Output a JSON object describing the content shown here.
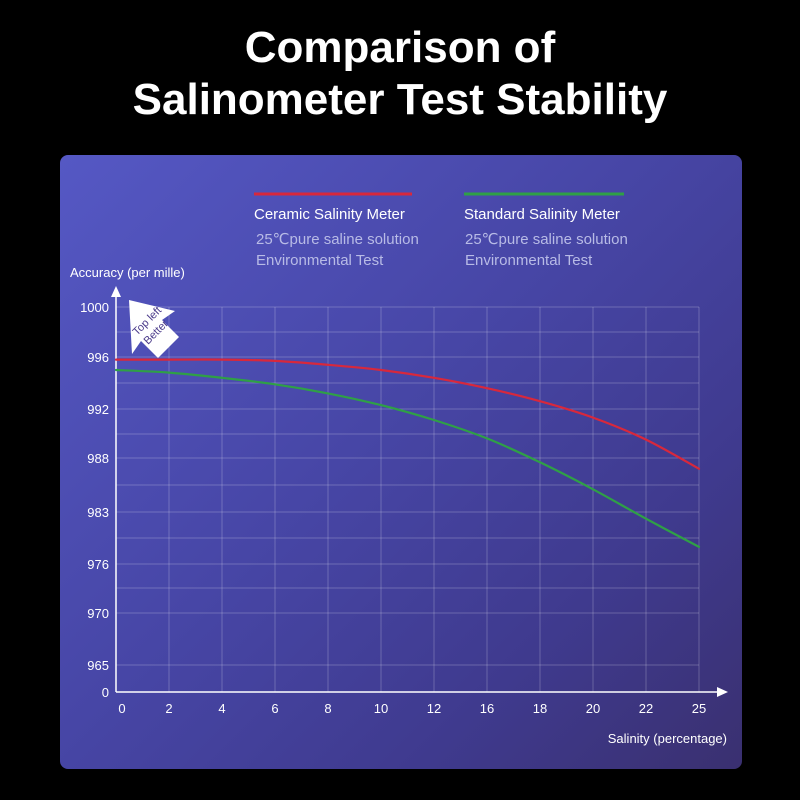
{
  "title": {
    "line1": "Comparison of",
    "line2": "Salinometer Test Stability"
  },
  "chart_data": {
    "type": "line",
    "xlabel": "Salinity (percentage)",
    "ylabel": "Accuracy (per mille)",
    "x_ticks": [
      "0",
      "2",
      "4",
      "6",
      "8",
      "10",
      "12",
      "16",
      "18",
      "20",
      "22",
      "25"
    ],
    "y_ticks": [
      "0",
      "965",
      "970",
      "976",
      "983",
      "988",
      "992",
      "996",
      "1000"
    ],
    "grid": true,
    "legend_position": "top",
    "annotation": {
      "line1": "Top left",
      "line2": "Better"
    },
    "series": [
      {
        "name": "Ceramic Salinity Meter",
        "subtitle1": "25℃pure saline solution",
        "subtitle2": "Environmental Test",
        "color": "#d8283c",
        "values": [
          [
            0,
            995.8
          ],
          [
            2,
            995.8
          ],
          [
            4,
            995.8
          ],
          [
            6,
            995.7
          ],
          [
            8,
            995.4
          ],
          [
            10,
            995.0
          ],
          [
            12,
            994.4
          ],
          [
            16,
            993.6
          ],
          [
            18,
            992.6
          ],
          [
            20,
            991.3
          ],
          [
            22,
            989.5
          ],
          [
            25,
            987.0
          ]
        ]
      },
      {
        "name": "Standard Salinity Meter",
        "subtitle1": "25℃pure saline solution",
        "subtitle2": "Environmental Test",
        "color": "#2fa046",
        "values": [
          [
            0,
            995.0
          ],
          [
            2,
            994.8
          ],
          [
            4,
            994.4
          ],
          [
            6,
            993.9
          ],
          [
            8,
            993.2
          ],
          [
            10,
            992.3
          ],
          [
            12,
            991.1
          ],
          [
            16,
            989.6
          ],
          [
            18,
            987.6
          ],
          [
            20,
            985.1
          ],
          [
            22,
            982.1
          ],
          [
            25,
            978.3
          ]
        ]
      }
    ]
  }
}
